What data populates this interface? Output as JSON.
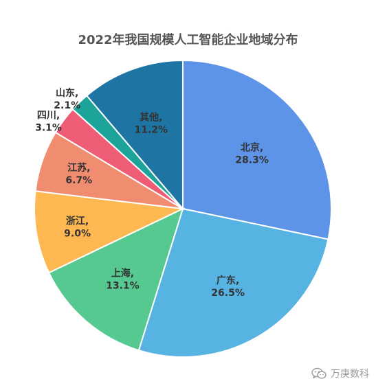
{
  "chart_data": {
    "type": "pie",
    "title": "2022年我国规模人工智能企业地域分布",
    "slices": [
      {
        "label": "北京,",
        "value_text": "28.3%",
        "value": 28.3,
        "color": "#5E94E8"
      },
      {
        "label": "广东,",
        "value_text": "26.5%",
        "value": 26.5,
        "color": "#56B3E2"
      },
      {
        "label": "上海,",
        "value_text": "13.1%",
        "value": 13.1,
        "color": "#55C98F"
      },
      {
        "label": "浙江,",
        "value_text": "9.0%",
        "value": 9.0,
        "color": "#FDB851"
      },
      {
        "label": "江苏,",
        "value_text": "6.7%",
        "value": 6.7,
        "color": "#F08C70"
      },
      {
        "label": "四川,",
        "value_text": "3.1%",
        "value": 3.1,
        "color": "#EE5D75"
      },
      {
        "label": "山东,",
        "value_text": "2.1%",
        "value": 2.1,
        "color": "#1CA39A"
      },
      {
        "label": "其他,",
        "value_text": "11.2%",
        "value": 11.2,
        "color": "#1E74A2"
      }
    ]
  },
  "watermark": {
    "icon": "wechat-icon",
    "text": "万庚数科"
  }
}
